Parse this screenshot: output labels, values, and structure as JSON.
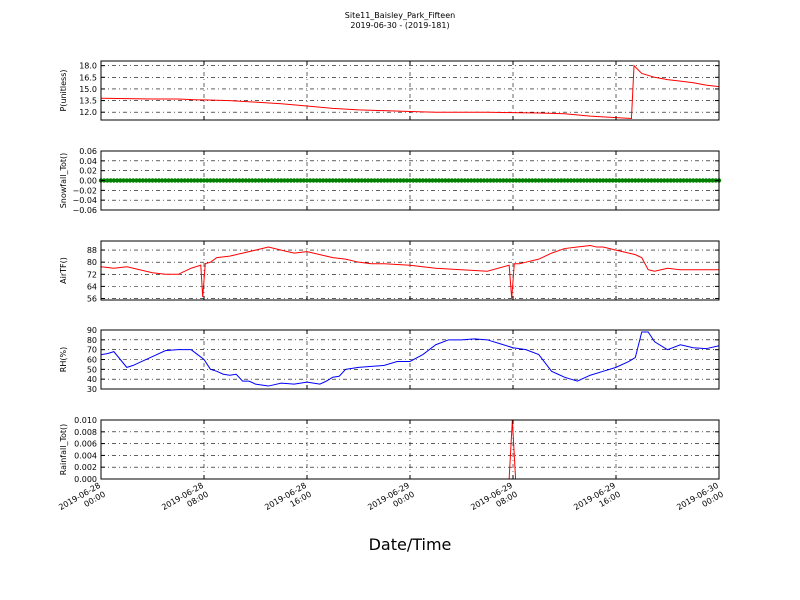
{
  "figure": {
    "title": "Site11_Baisley_Park_Fifteen",
    "subtitle": "2019-06-30 - (2019-181)",
    "xlabel": "Date/Time"
  },
  "chart_data": [
    {
      "type": "line",
      "ylabel": "P(unitless)",
      "color": "#ff0000",
      "ylim": [
        11,
        18.6
      ],
      "yticks": [
        "12.0",
        "13.5",
        "15.0",
        "16.5",
        "18.0"
      ],
      "ytick_values": [
        12.0,
        13.5,
        15.0,
        16.5,
        18.0
      ],
      "xlim": [
        0,
        48
      ],
      "grid": true,
      "x": [
        0,
        2,
        4,
        6,
        7.5,
        8,
        10,
        12,
        14,
        16,
        18,
        20,
        22,
        24,
        26,
        28,
        30,
        32,
        34,
        36,
        38,
        40,
        41.2,
        41.4,
        42,
        43,
        44,
        45,
        46,
        47,
        48
      ],
      "y": [
        13.8,
        13.75,
        13.7,
        13.7,
        13.6,
        13.6,
        13.5,
        13.3,
        13.1,
        12.8,
        12.5,
        12.3,
        12.2,
        12.1,
        12.0,
        12.0,
        12.0,
        11.95,
        11.9,
        11.8,
        11.5,
        11.3,
        11.2,
        18.0,
        17.0,
        16.5,
        16.2,
        16.0,
        15.8,
        15.5,
        15.3
      ]
    },
    {
      "type": "line",
      "ylabel": "Snowfall_Tot()",
      "color": "#008000",
      "marker": "circle",
      "ylim": [
        -0.06,
        0.06
      ],
      "yticks": [
        "−0.06",
        "−0.04",
        "−0.02",
        "0.00",
        "0.02",
        "0.04",
        "0.06"
      ],
      "ytick_values": [
        -0.06,
        -0.04,
        -0.02,
        0.0,
        0.02,
        0.04,
        0.06
      ],
      "xlim": [
        0,
        48
      ],
      "grid": true,
      "x_start": 0,
      "x_end": 48,
      "x_step": 0.25,
      "constant_value": 0.0
    },
    {
      "type": "line",
      "ylabel": "AirTF()",
      "color": "#ff0000",
      "ylim": [
        55,
        94
      ],
      "yticks": [
        "56",
        "64",
        "72",
        "80",
        "88"
      ],
      "ytick_values": [
        56,
        64,
        72,
        80,
        88
      ],
      "xlim": [
        0,
        48
      ],
      "grid": true,
      "x": [
        0,
        1,
        2,
        3,
        4,
        5,
        6,
        7,
        7.75,
        7.9,
        8.1,
        8.5,
        9,
        10,
        11,
        12,
        13,
        14,
        14.5,
        15,
        16,
        16.5,
        17,
        18,
        19,
        20,
        21,
        22,
        24,
        26,
        28,
        30,
        31.7,
        31.9,
        32.1,
        32.5,
        33,
        34,
        35,
        36,
        37,
        38,
        38.5,
        39,
        40,
        41,
        41.5,
        42,
        42.5,
        43,
        44,
        45,
        46,
        48
      ],
      "y": [
        77,
        76,
        77,
        75,
        73,
        72,
        72,
        76,
        78,
        57,
        79,
        80,
        83,
        84,
        86,
        88,
        90,
        88,
        87,
        86,
        87,
        86,
        85,
        83,
        82,
        80,
        79,
        79,
        78,
        76,
        75,
        74,
        78,
        56,
        79,
        79,
        80,
        82,
        86,
        89,
        90,
        91,
        90,
        90,
        88,
        86,
        85,
        83,
        75,
        74,
        76,
        75,
        75,
        75
      ]
    },
    {
      "type": "line",
      "ylabel": "RH(%)",
      "color": "#0000ff",
      "ylim": [
        30,
        90
      ],
      "yticks": [
        "30",
        "40",
        "50",
        "60",
        "70",
        "80",
        "90"
      ],
      "ytick_values": [
        30,
        40,
        50,
        60,
        70,
        80,
        90
      ],
      "xlim": [
        0,
        48
      ],
      "grid": true,
      "x": [
        0,
        0.5,
        1,
        1.5,
        2,
        2.5,
        3,
        4,
        5,
        6,
        7,
        7.5,
        8,
        8.5,
        9,
        9.5,
        10,
        10.5,
        11,
        11.5,
        12,
        13,
        14,
        15,
        16,
        17,
        17.5,
        18,
        18.5,
        19,
        20,
        21,
        22,
        23,
        24,
        25,
        26,
        27,
        28,
        29,
        30,
        31,
        32,
        33,
        34,
        35,
        35.5,
        36,
        36.5,
        37,
        38,
        39,
        40,
        41,
        41.5,
        42,
        42.5,
        43,
        44,
        45,
        46,
        47,
        48
      ],
      "y": [
        65,
        66,
        68,
        60,
        52,
        54,
        57,
        63,
        69,
        70,
        70,
        65,
        60,
        50,
        48,
        45,
        44,
        45,
        38,
        38,
        35,
        33,
        36,
        35,
        37,
        35,
        38,
        42,
        43,
        50,
        52,
        53,
        54,
        58,
        58,
        65,
        75,
        80,
        80,
        81,
        80,
        76,
        72,
        70,
        65,
        48,
        45,
        42,
        40,
        38,
        44,
        48,
        52,
        58,
        62,
        88,
        88,
        78,
        70,
        75,
        72,
        71,
        74
      ]
    },
    {
      "type": "line",
      "ylabel": "Rainfall_Tot()",
      "color": "#ff0000",
      "ylim": [
        0,
        0.01
      ],
      "yticks": [
        "0.000",
        "0.002",
        "0.004",
        "0.006",
        "0.008",
        "0.010"
      ],
      "ytick_values": [
        0,
        0.002,
        0.004,
        0.006,
        0.008,
        0.01
      ],
      "xlim": [
        0,
        48
      ],
      "grid": true,
      "x": [
        0,
        31.7,
        31.95,
        32.2,
        48
      ],
      "y": [
        0,
        0,
        0.01,
        0,
        0
      ]
    }
  ],
  "x_axis": {
    "tick_hours": [
      0,
      8,
      16,
      24,
      32,
      40,
      48
    ],
    "tick_labels": [
      [
        "2019-06-28",
        "00:00"
      ],
      [
        "2019-06-28",
        "08:00"
      ],
      [
        "2019-06-28",
        "16:00"
      ],
      [
        "2019-06-29",
        "00:00"
      ],
      [
        "2019-06-29",
        "08:00"
      ],
      [
        "2019-06-29",
        "16:00"
      ],
      [
        "2019-06-30",
        "00:00"
      ]
    ]
  }
}
